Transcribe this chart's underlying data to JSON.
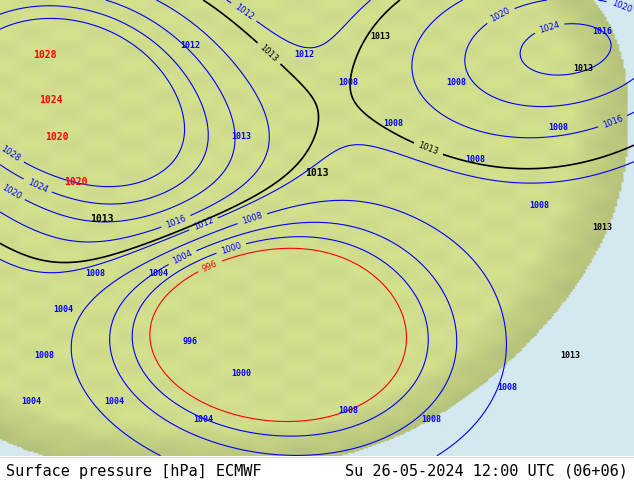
{
  "title_left": "Surface pressure [hPa] ECMWF",
  "title_right": "Su 26-05-2024 12:00 UTC (06+06)",
  "background_color": "#ffffff",
  "footer_bg_color": "#ffffff",
  "footer_text_color": "#000000",
  "footer_fontsize": 11,
  "fig_width": 6.34,
  "fig_height": 4.9,
  "map_bg_color": "#d4e8f0",
  "land_color": "#c8d8a8"
}
